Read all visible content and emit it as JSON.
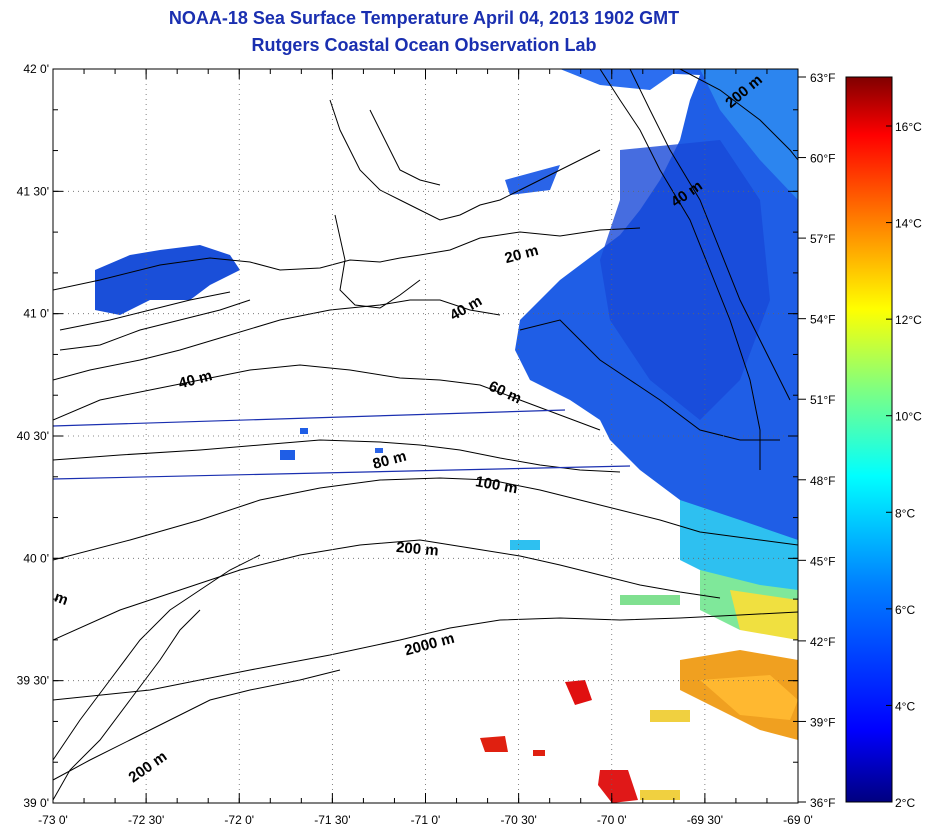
{
  "titles": {
    "line1": "NOAA-18 Sea Surface Temperature April 04, 2013 1902 GMT",
    "line2": "Rutgers Coastal Ocean Observation Lab"
  },
  "map": {
    "lon_range": [
      -73,
      -69
    ],
    "lat_range": [
      39,
      42
    ],
    "lon_ticks": [
      "-73 0'",
      "-72 30'",
      "-72 0'",
      "-71 30'",
      "-71 0'",
      "-70 30'",
      "-70 0'",
      "-69 30'",
      "-69 0'"
    ],
    "lat_ticks": [
      "42 0'",
      "41 30'",
      "41 0'",
      "40 30'",
      "40 0'",
      "39 30'",
      "39 0'"
    ],
    "contour_labels": [
      "200 m",
      "40 m",
      "20 m",
      "40 m",
      "40 m",
      "60 m",
      "80 m",
      "100 m",
      "200 m",
      "2000 m",
      "200 m",
      "m"
    ]
  },
  "colorbar": {
    "fahrenheit_labels": [
      "63°F",
      "60°F",
      "57°F",
      "54°F",
      "51°F",
      "48°F",
      "45°F",
      "42°F",
      "39°F",
      "36°F"
    ],
    "celsius_labels": [
      "16°C",
      "14°C",
      "12°C",
      "10°C",
      "8°C",
      "6°C",
      "4°C",
      "2°C"
    ],
    "colors": [
      "#000080",
      "#0000ff",
      "#0080ff",
      "#00ffff",
      "#80ff80",
      "#ffff00",
      "#ff8000",
      "#ff0000",
      "#800000"
    ]
  }
}
